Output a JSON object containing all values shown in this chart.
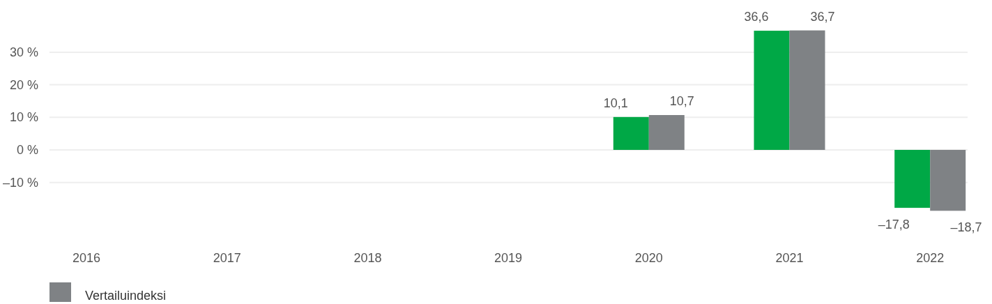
{
  "chart_data": {
    "type": "bar",
    "categories": [
      "2016",
      "2017",
      "2018",
      "2019",
      "2020",
      "2021",
      "2022"
    ],
    "series": [
      {
        "color": "#00a846",
        "values": [
          null,
          null,
          null,
          null,
          10.1,
          36.6,
          -17.8
        ],
        "value_labels": [
          null,
          null,
          null,
          null,
          "10,1",
          "36,6",
          "–17,8"
        ]
      },
      {
        "name": "Vertailuindeksi",
        "color": "#7f8285",
        "values": [
          null,
          null,
          null,
          null,
          10.7,
          36.7,
          -18.7
        ],
        "value_labels": [
          null,
          null,
          null,
          null,
          "10,7",
          "36,7",
          "–18,7"
        ]
      }
    ],
    "ylim": [
      -18.7,
      36.7
    ],
    "yticks": [
      {
        "value": -10,
        "label": "–10 %"
      },
      {
        "value": 0,
        "label": "0 %"
      },
      {
        "value": 10,
        "label": "10 %"
      },
      {
        "value": 20,
        "label": "20 %"
      },
      {
        "value": 30,
        "label": "30 %"
      }
    ],
    "grid": "y",
    "legend": "bottom left"
  }
}
